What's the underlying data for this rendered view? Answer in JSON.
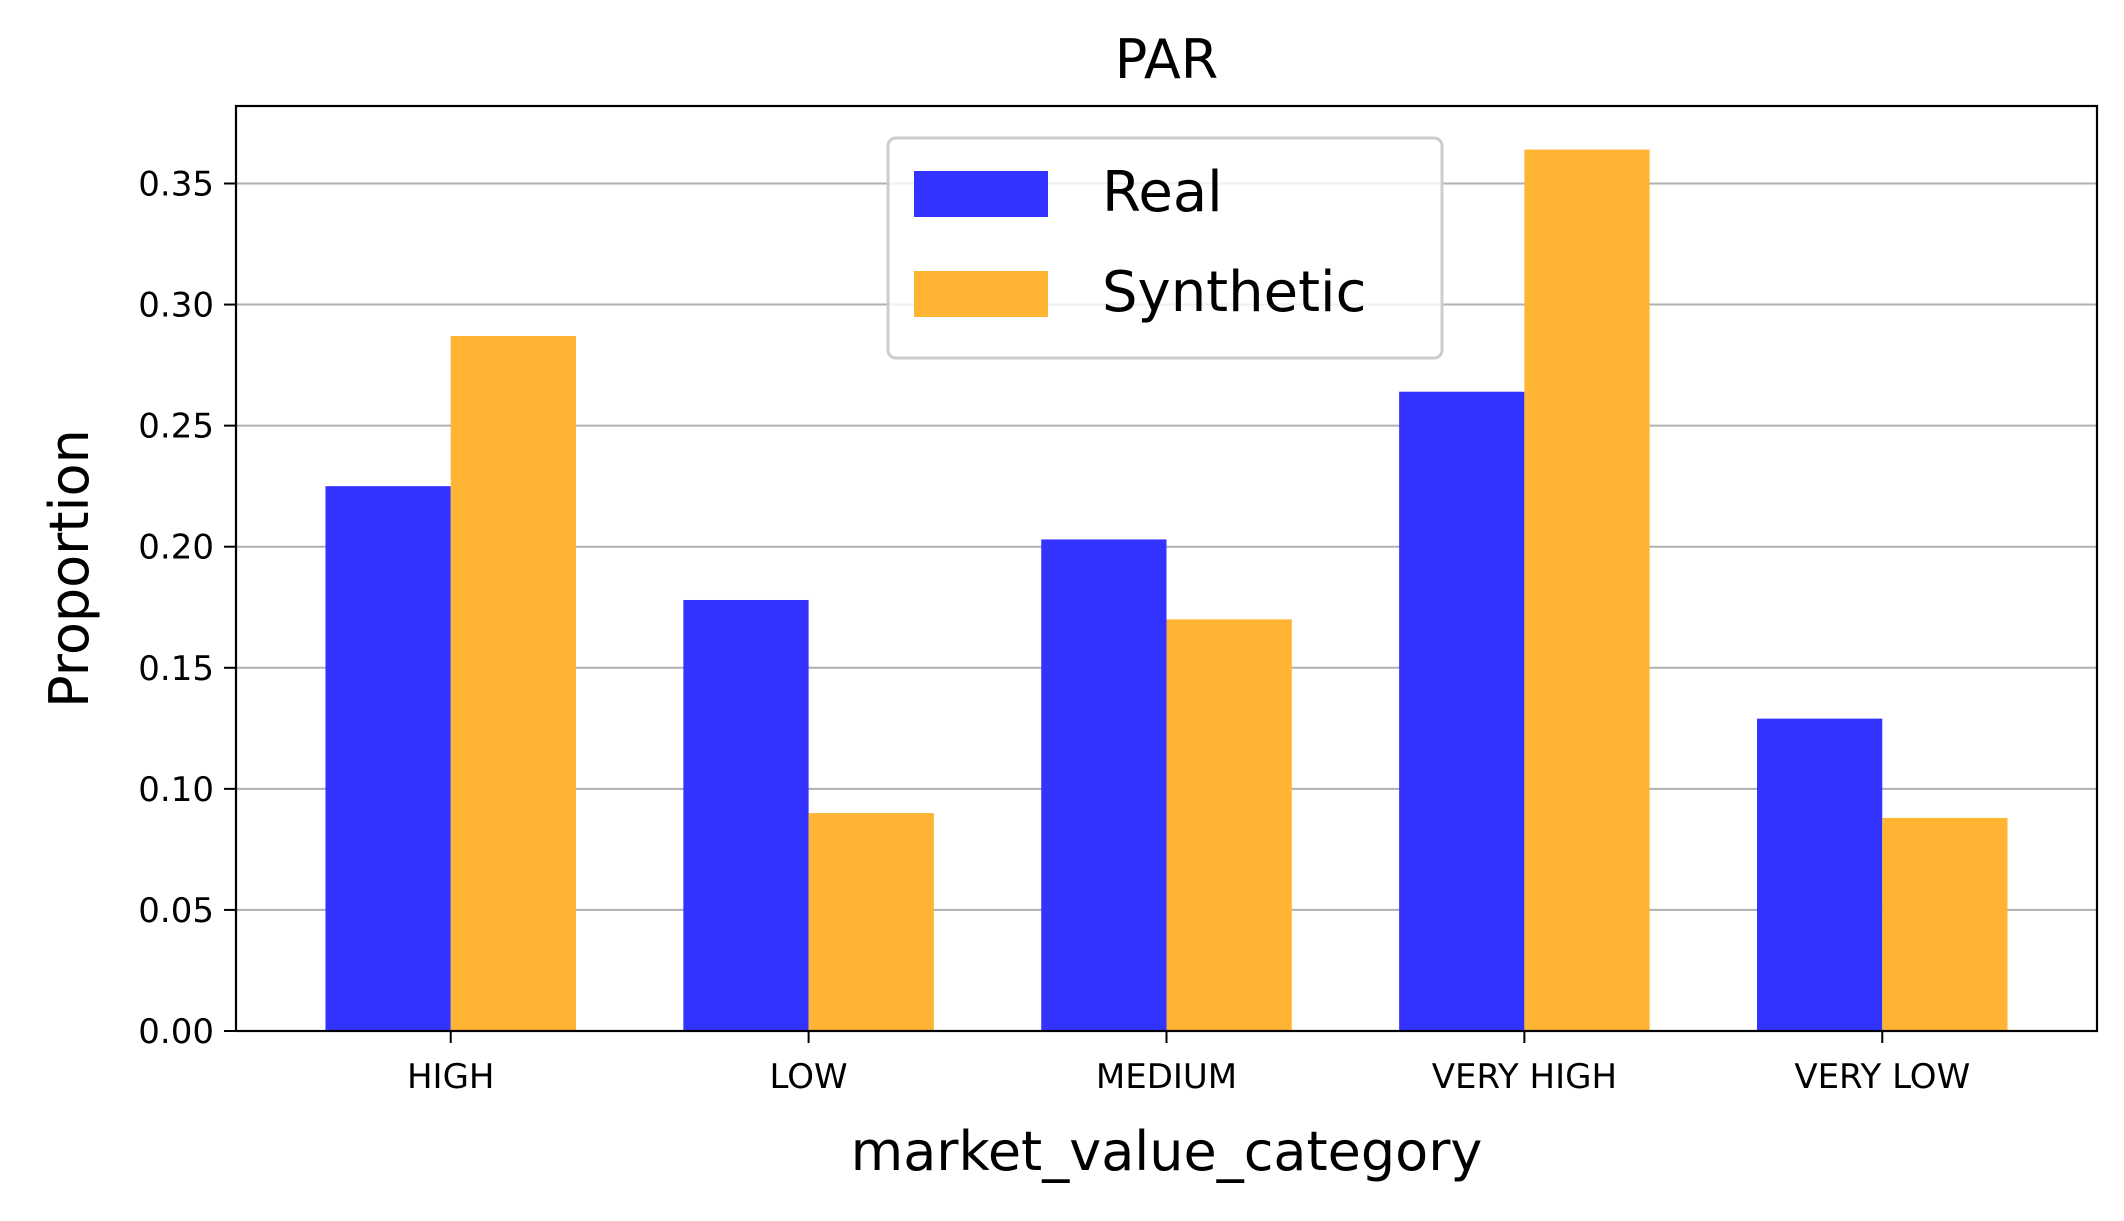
{
  "chart_data": {
    "type": "bar",
    "title": "PAR",
    "xlabel": "market_value_category",
    "ylabel": "Proportion",
    "categories": [
      "HIGH",
      "LOW",
      "MEDIUM",
      "VERY HIGH",
      "VERY LOW"
    ],
    "series": [
      {
        "name": "Real",
        "color": "#3333ff",
        "values": [
          0.225,
          0.178,
          0.203,
          0.264,
          0.129
        ]
      },
      {
        "name": "Synthetic",
        "color": "#ffb433",
        "values": [
          0.287,
          0.09,
          0.17,
          0.364,
          0.088
        ]
      }
    ],
    "ylim": [
      0,
      0.382
    ],
    "yticks": [
      "0.00",
      "0.05",
      "0.10",
      "0.15",
      "0.20",
      "0.25",
      "0.30",
      "0.35"
    ],
    "grid": "horizontal",
    "legend_position": "top-center"
  }
}
